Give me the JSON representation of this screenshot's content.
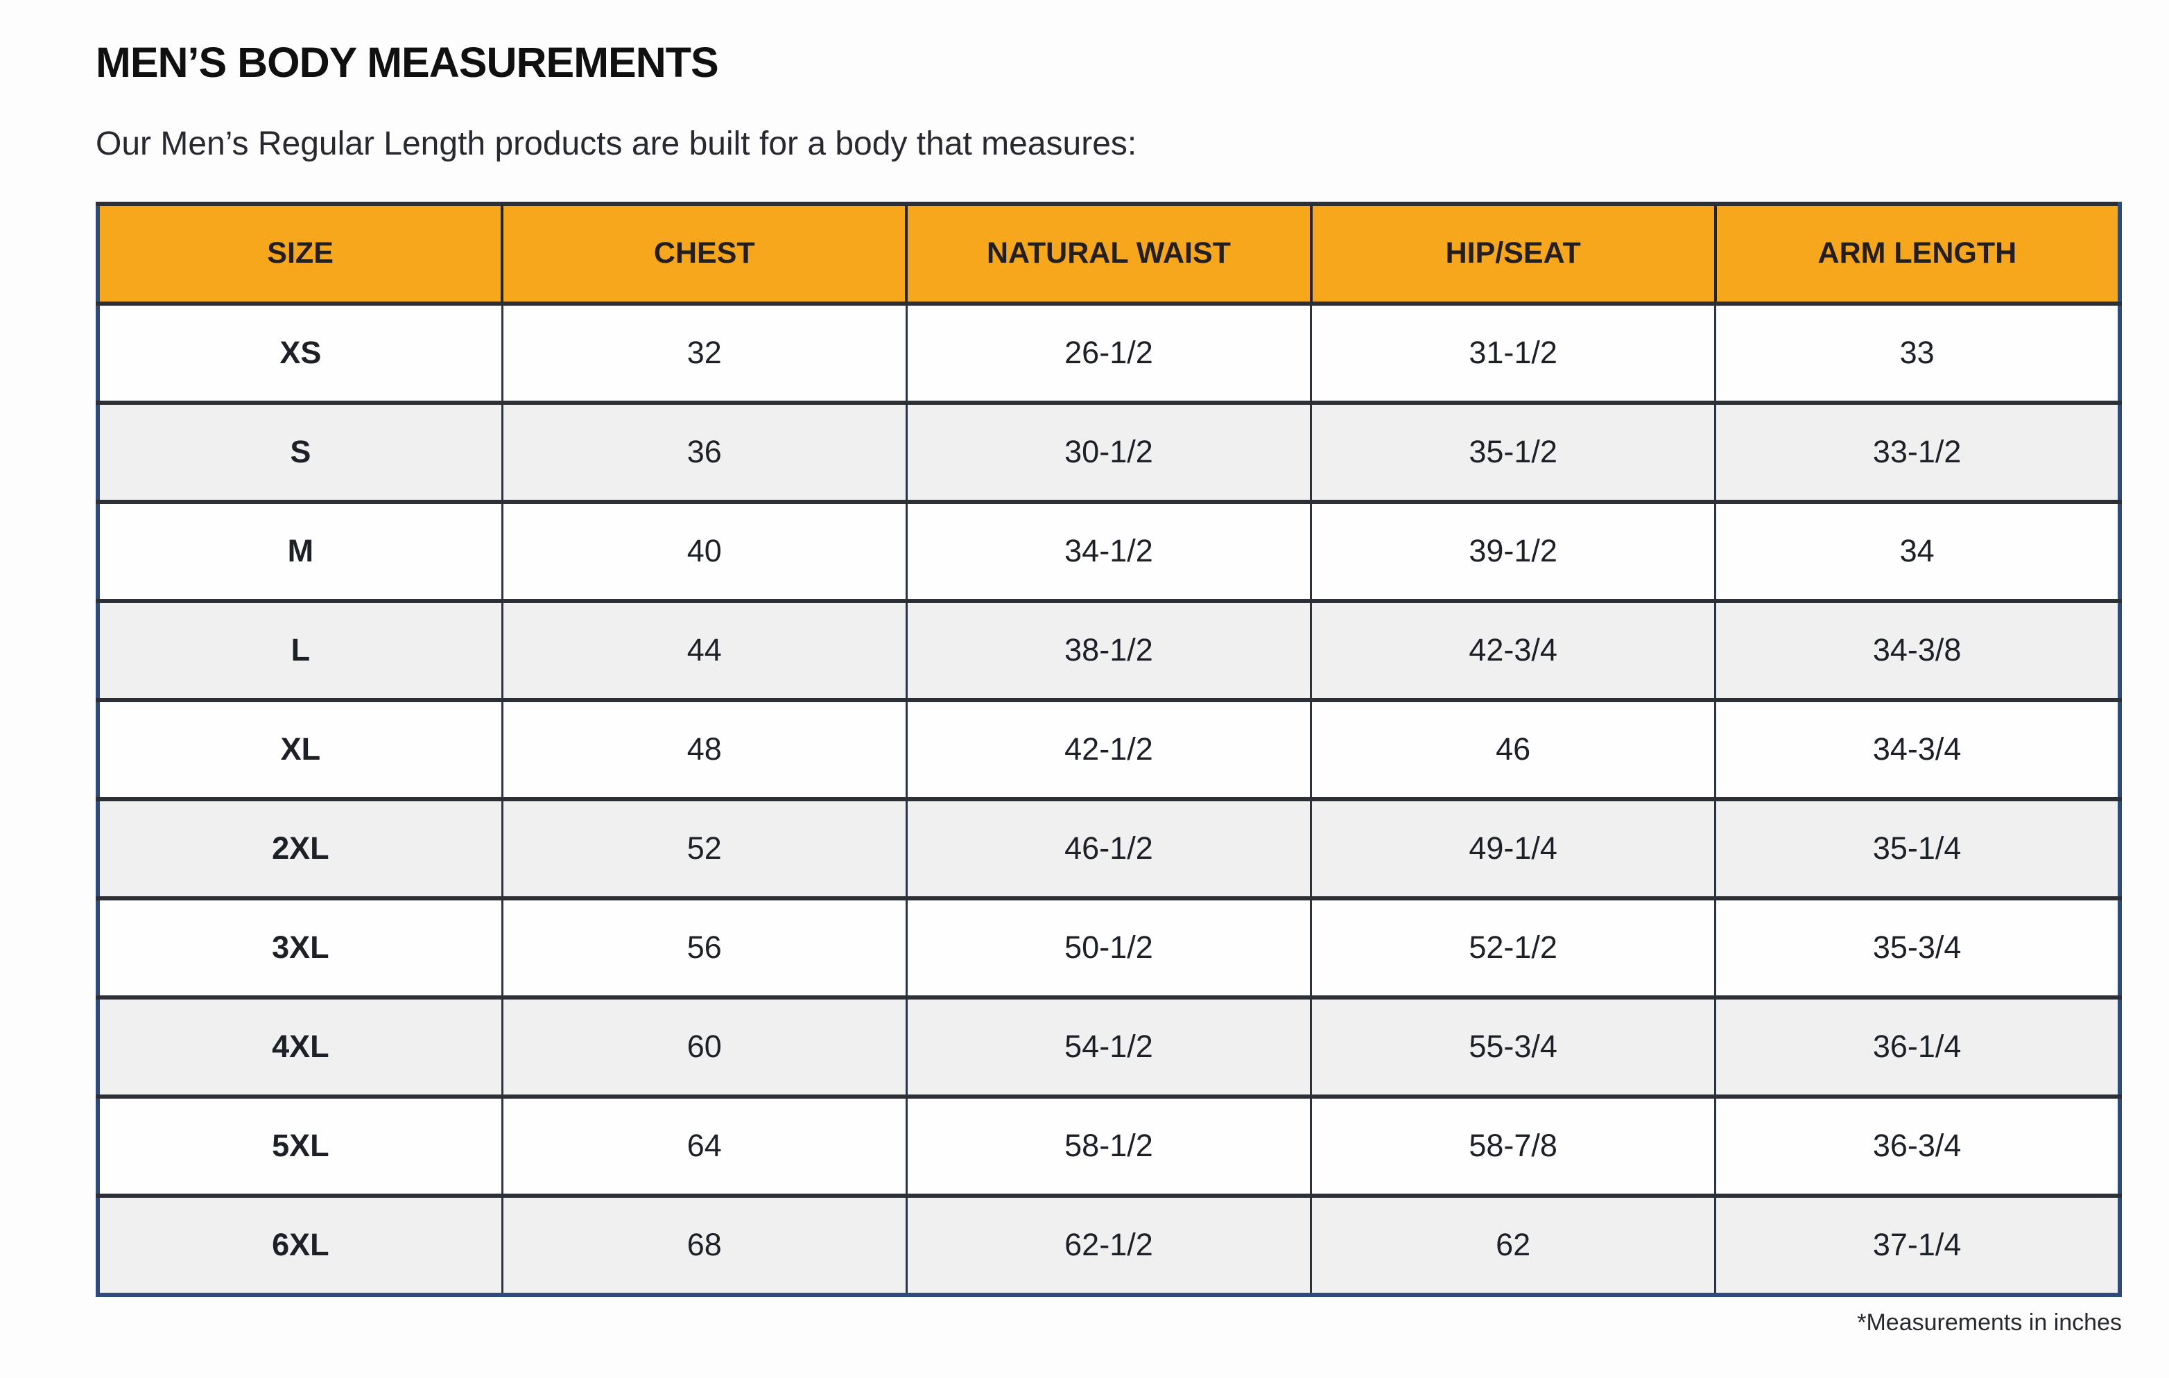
{
  "page": {
    "title": "MEN’S BODY MEASUREMENTS",
    "subtitle": "Our Men’s Regular Length products are built for a body that measures:",
    "footnote": "*Measurements in inches"
  },
  "colors": {
    "header_bg": "#F7A71B",
    "header_text": "#231F20",
    "header_divider": "#202631",
    "row_bg": "#FEFEFE",
    "row_alt_bg": "#F0F0F1",
    "outer_border": "#2E4C79",
    "divider": "#2C2F35",
    "column_divider": "#2B3442",
    "body_text": "#1D2026",
    "title_text": "#101010",
    "subtitle_text": "#27292E"
  },
  "chart_data": {
    "type": "table",
    "title": "MEN’S BODY MEASUREMENTS",
    "units": "inches",
    "columns": [
      "SIZE",
      "CHEST",
      "NATURAL WAIST",
      "HIP/SEAT",
      "ARM LENGTH"
    ],
    "rows": [
      [
        "XS",
        "32",
        "26-1/2",
        "31-1/2",
        "33"
      ],
      [
        "S",
        "36",
        "30-1/2",
        "35-1/2",
        "33-1/2"
      ],
      [
        "M",
        "40",
        "34-1/2",
        "39-1/2",
        "34"
      ],
      [
        "L",
        "44",
        "38-1/2",
        "42-3/4",
        "34-3/8"
      ],
      [
        "XL",
        "48",
        "42-1/2",
        "46",
        "34-3/4"
      ],
      [
        "2XL",
        "52",
        "46-1/2",
        "49-1/4",
        "35-1/4"
      ],
      [
        "3XL",
        "56",
        "50-1/2",
        "52-1/2",
        "35-3/4"
      ],
      [
        "4XL",
        "60",
        "54-1/2",
        "55-3/4",
        "36-1/4"
      ],
      [
        "5XL",
        "64",
        "58-1/2",
        "58-7/8",
        "36-3/4"
      ],
      [
        "6XL",
        "68",
        "62-1/2",
        "62",
        "37-1/4"
      ]
    ]
  }
}
